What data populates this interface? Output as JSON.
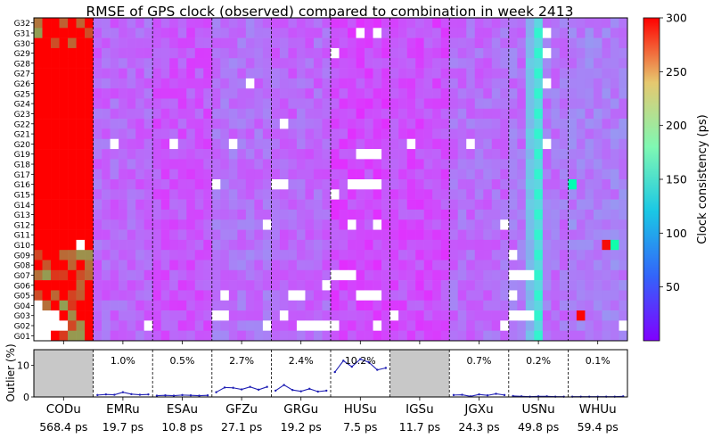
{
  "chart_data": [
    {
      "type": "heatmap",
      "title": "RMSE of GPS clock (observed) compared to combination in week 2413",
      "ylabels": [
        "G32",
        "G31",
        "G30",
        "G29",
        "G28",
        "G27",
        "G26",
        "G25",
        "G24",
        "G23",
        "G22",
        "G21",
        "G20",
        "G19",
        "G18",
        "G17",
        "G16",
        "G15",
        "G14",
        "G13",
        "G12",
        "G11",
        "G10",
        "G09",
        "G08",
        "G07",
        "G06",
        "G05",
        "G04",
        "G03",
        "G02",
        "G01"
      ],
      "groups": [
        {
          "name": "CODu",
          "rms": "568.4 ps",
          "base": 300,
          "outlier": null
        },
        {
          "name": "EMRu",
          "rms": "19.7 ps",
          "base": 40,
          "outlier": "1.0%"
        },
        {
          "name": "ESAu",
          "rms": "10.8 ps",
          "base": 33,
          "outlier": "0.5%"
        },
        {
          "name": "GFZu",
          "rms": "27.1 ps",
          "base": 44,
          "outlier": "2.7%"
        },
        {
          "name": "GRGu",
          "rms": "19.2 ps",
          "base": 40,
          "outlier": "2.4%"
        },
        {
          "name": "HUSu",
          "rms": "7.5 ps",
          "base": 28,
          "outlier": "10.2%"
        },
        {
          "name": "IGSu",
          "rms": "11.7 ps",
          "base": 30,
          "outlier": null
        },
        {
          "name": "JGXu",
          "rms": "24.3 ps",
          "base": 42,
          "outlier": "0.7%"
        },
        {
          "name": "USNu",
          "rms": "49.8 ps",
          "base": 45,
          "outlier": "0.2%"
        },
        {
          "name": "WHUu",
          "rms": "59.4 ps",
          "base": 50,
          "outlier": "0.1%"
        }
      ],
      "days_per_group": 7,
      "colorbar": {
        "label": "Clock consistency (ps)",
        "range": [
          0,
          300
        ],
        "ticks": [
          50,
          100,
          150,
          200,
          250,
          300
        ],
        "colormap": "rainbow"
      },
      "missing_color": "#ffffff",
      "outliers_white_cells": [
        {
          "group": 0,
          "sat": "G04",
          "days": [
            0
          ]
        },
        {
          "group": 0,
          "sat": "G03",
          "days": [
            0,
            1,
            2
          ]
        },
        {
          "group": 0,
          "sat": "G02",
          "days": [
            0,
            1,
            2,
            3
          ]
        },
        {
          "group": 0,
          "sat": "G01",
          "days": [
            0,
            1
          ]
        },
        {
          "group": 0,
          "sat": "G10",
          "days": [
            5
          ]
        },
        {
          "group": 1,
          "sat": "G20",
          "days": [
            2
          ]
        },
        {
          "group": 1,
          "sat": "G02",
          "days": [
            6
          ]
        },
        {
          "group": 2,
          "sat": "G20",
          "days": [
            2
          ]
        },
        {
          "group": 3,
          "sat": "G26",
          "days": [
            4
          ]
        },
        {
          "group": 3,
          "sat": "G20",
          "days": [
            2
          ]
        },
        {
          "group": 3,
          "sat": "G16",
          "days": [
            0
          ]
        },
        {
          "group": 3,
          "sat": "G12",
          "days": [
            6
          ]
        },
        {
          "group": 3,
          "sat": "G05",
          "days": [
            1
          ]
        },
        {
          "group": 3,
          "sat": "G03",
          "days": [
            0,
            1
          ]
        },
        {
          "group": 3,
          "sat": "G02",
          "days": [
            6
          ]
        },
        {
          "group": 4,
          "sat": "G22",
          "days": [
            1
          ]
        },
        {
          "group": 4,
          "sat": "G16",
          "days": [
            0,
            1
          ]
        },
        {
          "group": 4,
          "sat": "G06",
          "days": [
            6
          ]
        },
        {
          "group": 4,
          "sat": "G05",
          "days": [
            2,
            3
          ]
        },
        {
          "group": 4,
          "sat": "G03",
          "days": [
            1
          ]
        },
        {
          "group": 4,
          "sat": "G02",
          "days": [
            3,
            4,
            5,
            6
          ]
        },
        {
          "group": 5,
          "sat": "G31",
          "days": [
            3,
            5
          ]
        },
        {
          "group": 5,
          "sat": "G29",
          "days": [
            0
          ]
        },
        {
          "group": 5,
          "sat": "G19",
          "days": [
            3,
            4,
            5
          ]
        },
        {
          "group": 5,
          "sat": "G16",
          "days": [
            2,
            3,
            4,
            5
          ]
        },
        {
          "group": 5,
          "sat": "G15",
          "days": [
            0
          ]
        },
        {
          "group": 5,
          "sat": "G12",
          "days": [
            2,
            5
          ]
        },
        {
          "group": 5,
          "sat": "G07",
          "days": [
            0,
            1,
            2
          ]
        },
        {
          "group": 5,
          "sat": "G05",
          "days": [
            3,
            4,
            5
          ]
        },
        {
          "group": 5,
          "sat": "G02",
          "days": [
            0,
            5
          ]
        },
        {
          "group": 6,
          "sat": "G20",
          "days": [
            2
          ]
        },
        {
          "group": 6,
          "sat": "G03",
          "days": [
            0
          ]
        },
        {
          "group": 7,
          "sat": "G20",
          "days": [
            2
          ]
        },
        {
          "group": 7,
          "sat": "G12",
          "days": [
            6
          ]
        },
        {
          "group": 7,
          "sat": "G02",
          "days": [
            6
          ]
        },
        {
          "group": 8,
          "sat": "G31",
          "days": [
            4
          ]
        },
        {
          "group": 8,
          "sat": "G29",
          "days": [
            4
          ]
        },
        {
          "group": 8,
          "sat": "G26",
          "days": [
            4
          ]
        },
        {
          "group": 8,
          "sat": "G20",
          "days": [
            4
          ]
        },
        {
          "group": 8,
          "sat": "G09",
          "days": [
            0
          ]
        },
        {
          "group": 8,
          "sat": "G07",
          "days": [
            0,
            1,
            2
          ]
        },
        {
          "group": 8,
          "sat": "G05",
          "days": [
            0
          ]
        },
        {
          "group": 8,
          "sat": "G03",
          "days": [
            0,
            1,
            2
          ]
        },
        {
          "group": 9,
          "sat": "G02",
          "days": [
            6
          ]
        }
      ],
      "hot_cells": [
        {
          "group": 9,
          "sat": "G10",
          "day": 4,
          "value": 295
        },
        {
          "group": 9,
          "sat": "G10",
          "day": 5,
          "value": 160
        },
        {
          "group": 9,
          "sat": "G03",
          "day": 1,
          "value": 298
        },
        {
          "group": 9,
          "sat": "G16",
          "day": 0,
          "value": 150
        }
      ]
    },
    {
      "type": "line",
      "ylabel": "Outlier (%)",
      "ylim": [
        0,
        15
      ],
      "yticks": [
        0,
        10
      ],
      "unavailable_groups": [
        "CODu",
        "IGSu"
      ],
      "series": [
        {
          "group": "EMRu",
          "values": [
            0.6,
            0.8,
            0.7,
            1.5,
            0.9,
            0.7,
            0.8
          ]
        },
        {
          "group": "ESAu",
          "values": [
            0.4,
            0.5,
            0.4,
            0.6,
            0.5,
            0.4,
            0.5
          ]
        },
        {
          "group": "GFZu",
          "values": [
            1.5,
            3.0,
            2.9,
            2.4,
            3.2,
            2.3,
            3.2
          ]
        },
        {
          "group": "GRGu",
          "values": [
            2.0,
            3.8,
            2.2,
            1.8,
            2.6,
            1.7,
            2.0
          ]
        },
        {
          "group": "HUSu",
          "values": [
            7.9,
            11.5,
            9.6,
            12.0,
            11.0,
            8.6,
            9.2
          ]
        },
        {
          "group": "JGXu",
          "values": [
            0.6,
            0.7,
            0.2,
            0.8,
            0.5,
            1.0,
            0.6
          ]
        },
        {
          "group": "USNu",
          "values": [
            0.3,
            0.2,
            0.1,
            0.2,
            0.2,
            0.1,
            0.1
          ]
        },
        {
          "group": "WHUu",
          "values": [
            0.1,
            0.1,
            0.1,
            0.1,
            0.1,
            0.1,
            0.2
          ]
        }
      ]
    }
  ]
}
